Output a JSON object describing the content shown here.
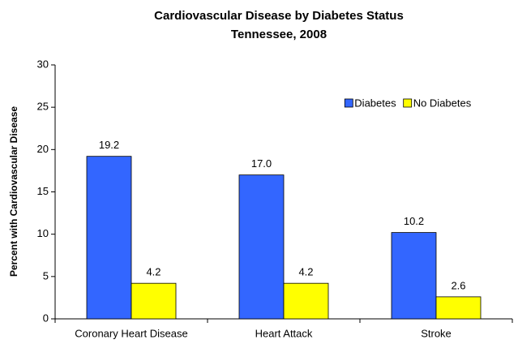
{
  "chart_data": {
    "type": "bar",
    "title": "Cardiovascular Disease by Diabetes Status",
    "subtitle": "Tennessee, 2008",
    "y_label": "Percent with Cardiovascular Disease",
    "categories": [
      "Coronary Heart Disease",
      "Heart Attack",
      "Stroke"
    ],
    "series": [
      {
        "name": "Diabetes",
        "color": "#3366ff",
        "values": [
          19.2,
          17.0,
          10.2
        ],
        "value_labels": [
          "19.2",
          "17.0",
          "10.2"
        ]
      },
      {
        "name": "No Diabetes",
        "color": "#ffff00",
        "values": [
          4.2,
          4.2,
          2.6
        ],
        "value_labels": [
          "4.2",
          "4.2",
          "2.6"
        ]
      }
    ],
    "ylim": [
      0,
      30
    ],
    "yticks": [
      0,
      5,
      10,
      15,
      20,
      25,
      30
    ],
    "grid": false,
    "legend_position": "upper right"
  }
}
